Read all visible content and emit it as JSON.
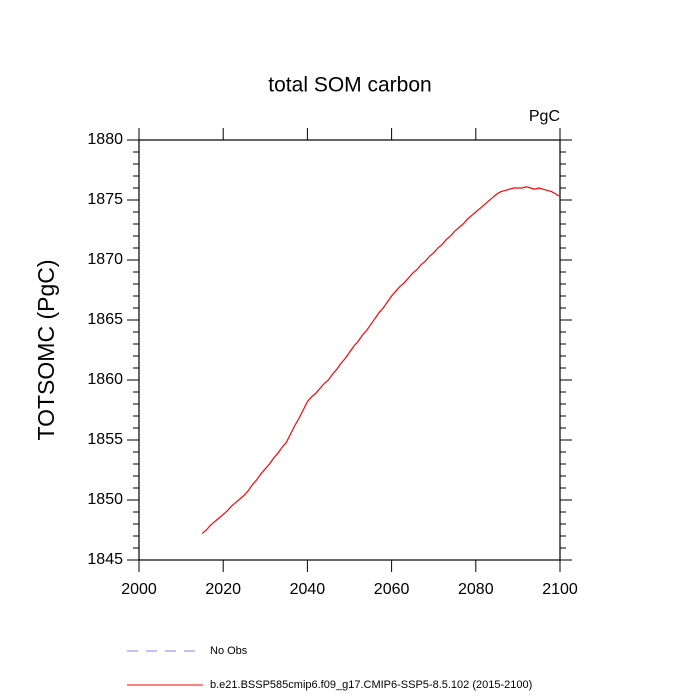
{
  "chart_data": {
    "type": "line",
    "title": "total SOM carbon",
    "units_label": "PgC",
    "y_label": "TOTSOMC  (PgC)",
    "xlim": [
      2000,
      2100
    ],
    "xticks": [
      2000,
      2020,
      2040,
      2060,
      2080,
      2100
    ],
    "ylim": [
      1845,
      1880
    ],
    "yticks": [
      1845,
      1850,
      1855,
      1860,
      1865,
      1870,
      1875,
      1880
    ],
    "yminorticks": [
      1845,
      1846,
      1847,
      1848,
      1849,
      1850,
      1851,
      1852,
      1853,
      1854,
      1855,
      1856,
      1857,
      1858,
      1859,
      1860,
      1861,
      1862,
      1863,
      1864,
      1865,
      1866,
      1867,
      1868,
      1869,
      1870,
      1871,
      1872,
      1873,
      1874,
      1875,
      1876,
      1877,
      1878,
      1879,
      1880
    ],
    "x": [
      2015,
      2016,
      2017,
      2018,
      2019,
      2020,
      2021,
      2022,
      2023,
      2024,
      2025,
      2026,
      2027,
      2028,
      2029,
      2030,
      2031,
      2032,
      2033,
      2034,
      2035,
      2036,
      2037,
      2038,
      2039,
      2040,
      2041,
      2042,
      2043,
      2044,
      2045,
      2046,
      2047,
      2048,
      2049,
      2050,
      2051,
      2052,
      2053,
      2054,
      2055,
      2056,
      2057,
      2058,
      2059,
      2060,
      2061,
      2062,
      2063,
      2064,
      2065,
      2066,
      2067,
      2068,
      2069,
      2070,
      2071,
      2072,
      2073,
      2074,
      2075,
      2076,
      2077,
      2078,
      2079,
      2080,
      2081,
      2082,
      2083,
      2084,
      2085,
      2086,
      2087,
      2088,
      2089,
      2090,
      2091,
      2092,
      2093,
      2094,
      2095,
      2096,
      2097,
      2098,
      2099,
      2100
    ],
    "series": [
      {
        "name": "b.e21.BSSP585cmip6.f09_g17.CMIP6-SSP5-8.5.102 (2015-2100)",
        "color": "#ff0000",
        "values": [
          1847.2,
          1847.5,
          1847.9,
          1848.2,
          1848.5,
          1848.8,
          1849.1,
          1849.5,
          1849.8,
          1850.1,
          1850.4,
          1850.8,
          1851.3,
          1851.7,
          1852.2,
          1852.6,
          1853.0,
          1853.5,
          1853.9,
          1854.4,
          1854.8,
          1855.5,
          1856.2,
          1856.8,
          1857.5,
          1858.2,
          1858.6,
          1858.9,
          1859.3,
          1859.7,
          1860.0,
          1860.5,
          1860.9,
          1861.4,
          1861.8,
          1862.3,
          1862.8,
          1863.2,
          1863.7,
          1864.1,
          1864.6,
          1865.1,
          1865.6,
          1866.0,
          1866.5,
          1867.0,
          1867.4,
          1867.8,
          1868.1,
          1868.5,
          1868.9,
          1869.2,
          1869.6,
          1869.9,
          1870.3,
          1870.6,
          1871.0,
          1871.3,
          1871.7,
          1872.0,
          1872.4,
          1872.7,
          1873.0,
          1873.4,
          1873.7,
          1874.0,
          1874.3,
          1874.6,
          1874.9,
          1875.2,
          1875.5,
          1875.7,
          1875.8,
          1875.9,
          1876.0,
          1876.0,
          1876.0,
          1876.1,
          1876.0,
          1875.9,
          1876.0,
          1875.9,
          1875.8,
          1875.7,
          1875.5,
          1875.3
        ]
      }
    ],
    "extra_legend": [
      {
        "name": "No Obs",
        "color": "#8080ff",
        "dashed": true
      }
    ]
  }
}
